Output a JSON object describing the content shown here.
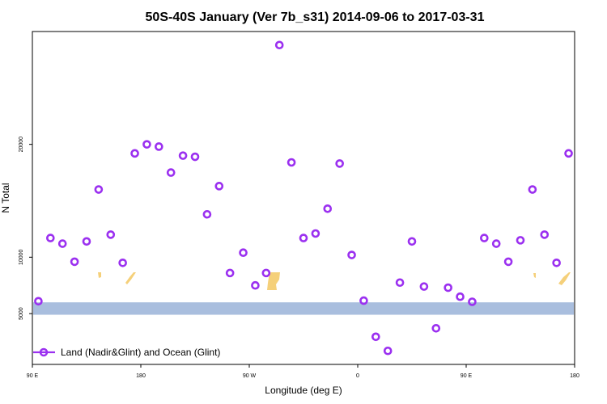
{
  "chart_data": {
    "type": "scatter",
    "title": "50S-40S January (Ver 7b_s31)   2014-09-06 to 2017-03-31",
    "xlabel": "Longitude (deg E)",
    "ylabel": "N Total",
    "x_ticks": [
      {
        "value": 90,
        "label": "90 E"
      },
      {
        "value": 180,
        "label": "180"
      },
      {
        "value": 270,
        "label": "90 W"
      },
      {
        "value": 360,
        "label": "0"
      },
      {
        "value": 450,
        "label": "90 E"
      },
      {
        "value": 540,
        "label": "180"
      }
    ],
    "y_ticks": [
      {
        "value": 5000,
        "label": "5000"
      },
      {
        "value": 10000,
        "label": "10000"
      },
      {
        "value": 20000,
        "label": "20000"
      }
    ],
    "xlim": [
      90,
      540
    ],
    "ylim": [
      500,
      30000
    ],
    "grid": false,
    "legend_position": "bottom-left",
    "series": [
      {
        "name": "Land (Nadir&Glint) and Ocean (Glint)",
        "color": "#9b30f0",
        "marker": "open-circle",
        "x": [
          95,
          105,
          115,
          125,
          135,
          145,
          155,
          165,
          175,
          185,
          195,
          205,
          215,
          225,
          235,
          245,
          254,
          265,
          275,
          284,
          295,
          305,
          315,
          325,
          335,
          345,
          355,
          365,
          375,
          385,
          395,
          405,
          415,
          425,
          435,
          445,
          455,
          465,
          475,
          485,
          495,
          505,
          515,
          525,
          535
        ],
        "y": [
          6100,
          11700,
          11200,
          9600,
          11400,
          16000,
          12000,
          9500,
          19200,
          20000,
          19800,
          17500,
          19000,
          18900,
          13800,
          16300,
          8600,
          10400,
          7500,
          8600,
          28800,
          18400,
          11700,
          12100,
          14300,
          18300,
          10200,
          6150,
          2950,
          1700,
          7750,
          11400,
          7400,
          3700,
          7300,
          6500,
          6050,
          11700,
          11200,
          9600,
          11500,
          16000,
          12000,
          9500,
          19200
        ]
      }
    ],
    "background_band": {
      "y_range": [
        4900,
        6000
      ],
      "ocean_color": "#a9bede",
      "land_color": "#f5d07a"
    }
  }
}
